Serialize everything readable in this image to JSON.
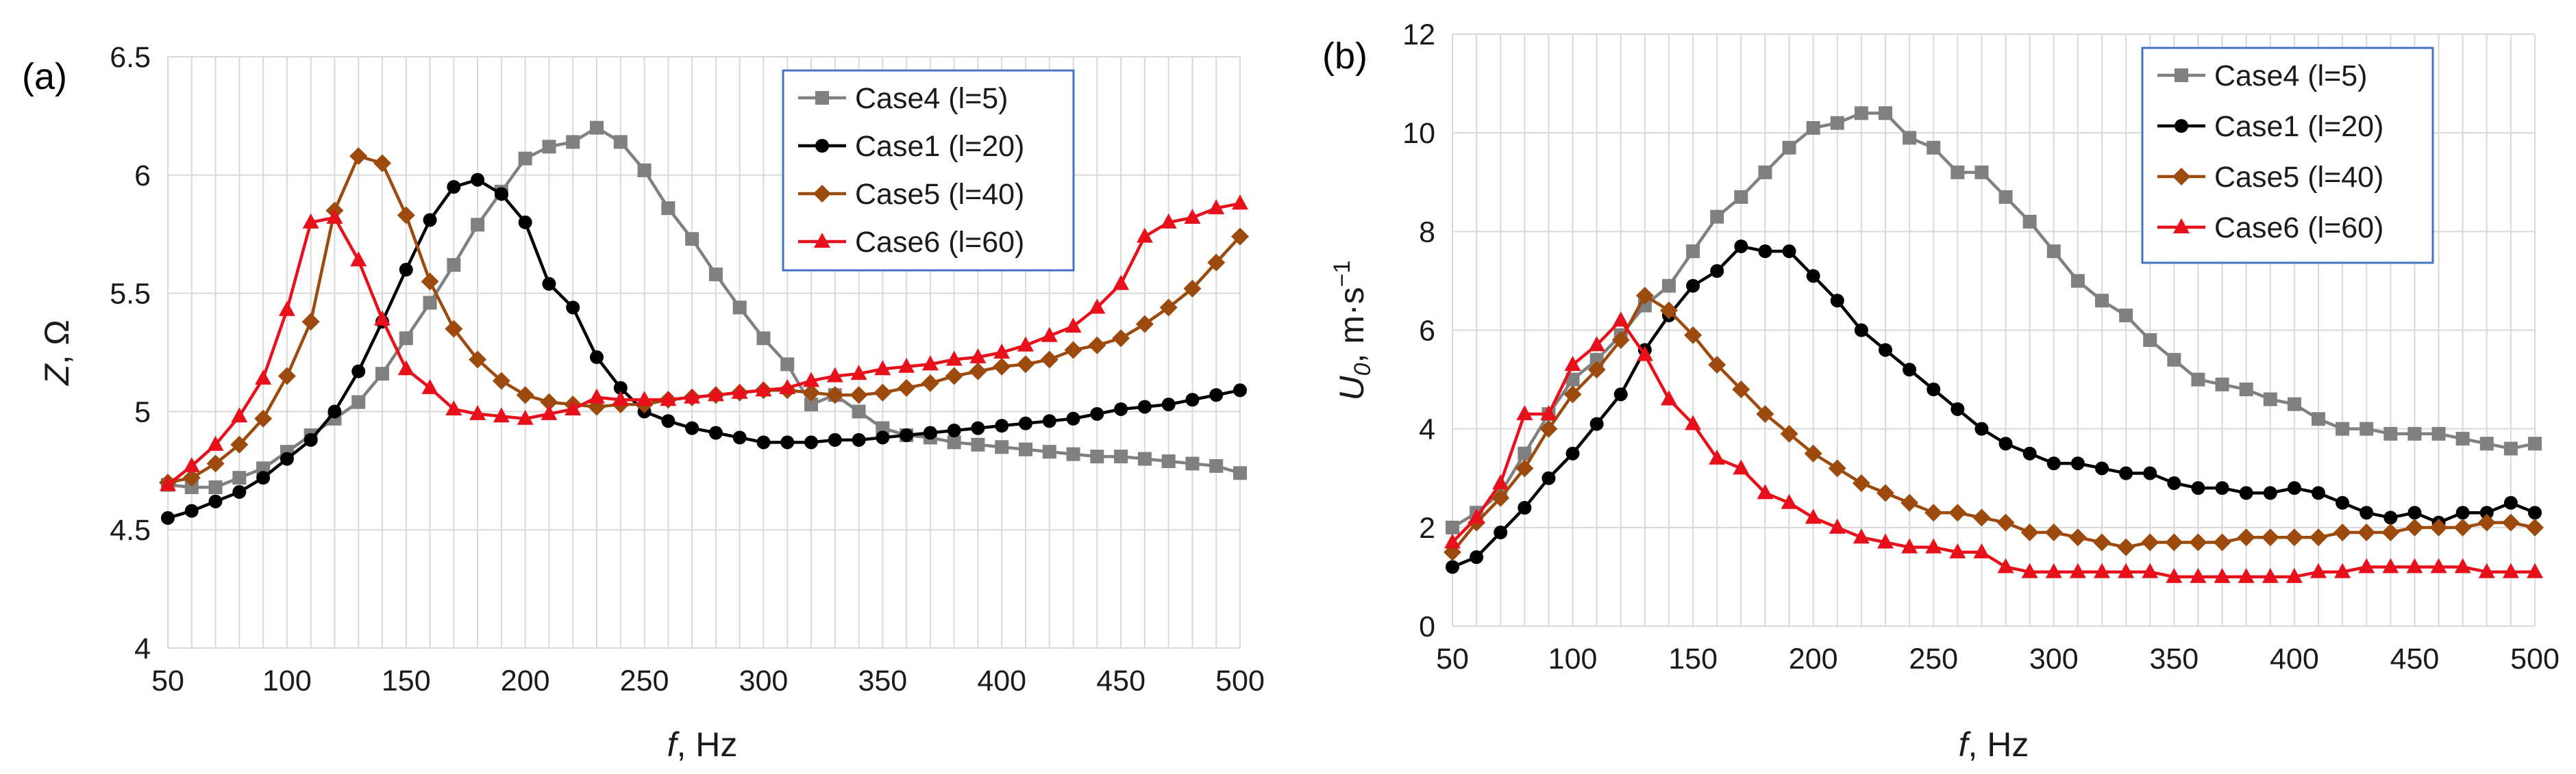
{
  "chart_data": [
    {
      "type": "line",
      "panel_label": "(a)",
      "xlabel": "f",
      "xlabel_unit": ", Hz",
      "ylabel": "Z",
      "ylabel_unit": ", Ω",
      "xlim": [
        50,
        500
      ],
      "ylim": [
        4,
        6.5
      ],
      "xticks": [
        "50",
        "100",
        "150",
        "200",
        "250",
        "300",
        "350",
        "400",
        "450",
        "500"
      ],
      "yticks": [
        "4",
        "4.5",
        "5",
        "5.5",
        "6",
        "6.5"
      ],
      "grid": true,
      "legend_position": "top-right",
      "x": [
        50,
        60,
        70,
        80,
        90,
        100,
        110,
        120,
        130,
        140,
        150,
        160,
        170,
        180,
        190,
        200,
        210,
        220,
        230,
        240,
        250,
        260,
        270,
        280,
        290,
        300,
        310,
        320,
        330,
        340,
        350,
        360,
        370,
        380,
        390,
        400,
        410,
        420,
        430,
        440,
        450,
        460,
        470,
        480,
        490,
        500
      ],
      "series": [
        {
          "name": "Case4 (l=5)",
          "color": "#808080",
          "marker": "square",
          "values": [
            4.69,
            4.68,
            4.68,
            4.72,
            4.76,
            4.83,
            4.9,
            4.97,
            5.04,
            5.16,
            5.31,
            5.46,
            5.62,
            5.79,
            5.93,
            6.07,
            6.12,
            6.14,
            6.2,
            6.14,
            6.02,
            5.86,
            5.73,
            5.58,
            5.44,
            5.31,
            5.2,
            5.03,
            5.07,
            5.0,
            4.93,
            4.9,
            4.89,
            4.87,
            4.86,
            4.85,
            4.84,
            4.83,
            4.82,
            4.81,
            4.81,
            4.8,
            4.79,
            4.78,
            4.77,
            4.74
          ]
        },
        {
          "name": "Case1 (l=20)",
          "color": "#000000",
          "marker": "circle",
          "values": [
            4.55,
            4.58,
            4.62,
            4.66,
            4.72,
            4.8,
            4.88,
            5.0,
            5.17,
            5.38,
            5.6,
            5.81,
            5.95,
            5.98,
            5.92,
            5.8,
            5.54,
            5.44,
            5.23,
            5.1,
            5.0,
            4.96,
            4.93,
            4.91,
            4.89,
            4.87,
            4.87,
            4.87,
            4.88,
            4.88,
            4.89,
            4.9,
            4.91,
            4.92,
            4.93,
            4.94,
            4.95,
            4.96,
            4.97,
            4.99,
            5.01,
            5.02,
            5.03,
            5.05,
            5.07,
            5.09
          ]
        },
        {
          "name": "Case5 (l=40)",
          "color": "#9C4A0E",
          "marker": "diamond",
          "values": [
            4.7,
            4.72,
            4.78,
            4.86,
            4.97,
            5.15,
            5.38,
            5.85,
            6.08,
            6.05,
            5.83,
            5.55,
            5.35,
            5.22,
            5.13,
            5.07,
            5.04,
            5.03,
            5.02,
            5.03,
            5.03,
            5.05,
            5.06,
            5.07,
            5.08,
            5.09,
            5.09,
            5.08,
            5.07,
            5.07,
            5.08,
            5.1,
            5.12,
            5.15,
            5.17,
            5.19,
            5.2,
            5.22,
            5.26,
            5.28,
            5.31,
            5.37,
            5.44,
            5.52,
            5.63,
            5.74
          ]
        },
        {
          "name": "Case6 (l=60)",
          "color": "#E8101A",
          "marker": "triangle",
          "values": [
            4.69,
            4.77,
            4.86,
            4.98,
            5.14,
            5.43,
            5.8,
            5.82,
            5.64,
            5.39,
            5.18,
            5.1,
            5.01,
            4.99,
            4.98,
            4.97,
            4.99,
            5.01,
            5.06,
            5.05,
            5.05,
            5.05,
            5.06,
            5.07,
            5.08,
            5.09,
            5.1,
            5.13,
            5.15,
            5.16,
            5.18,
            5.19,
            5.2,
            5.22,
            5.23,
            5.25,
            5.28,
            5.32,
            5.36,
            5.44,
            5.54,
            5.74,
            5.8,
            5.82,
            5.86,
            5.88
          ]
        }
      ]
    },
    {
      "type": "line",
      "panel_label": "(b)",
      "xlabel": "f",
      "xlabel_unit": ", Hz",
      "ylabel": "U",
      "ylabel_sub": "0",
      "ylabel_unit": ", m·s",
      "ylabel_sup": "−1",
      "xlim": [
        50,
        500
      ],
      "ylim": [
        0,
        12
      ],
      "xticks": [
        "50",
        "100",
        "150",
        "200",
        "250",
        "300",
        "350",
        "400",
        "450",
        "500"
      ],
      "yticks": [
        "0",
        "2",
        "4",
        "6",
        "8",
        "10",
        "12"
      ],
      "grid": true,
      "legend_position": "top-right",
      "x": [
        50,
        60,
        70,
        80,
        90,
        100,
        110,
        120,
        130,
        140,
        150,
        160,
        170,
        180,
        190,
        200,
        210,
        220,
        230,
        240,
        250,
        260,
        270,
        280,
        290,
        300,
        310,
        320,
        330,
        340,
        350,
        360,
        370,
        380,
        390,
        400,
        410,
        420,
        430,
        440,
        450,
        460,
        470,
        480,
        490,
        500
      ],
      "series": [
        {
          "name": "Case4 (l=5)",
          "color": "#808080",
          "marker": "square",
          "values": [
            2.0,
            2.3,
            2.7,
            3.5,
            4.3,
            5.0,
            5.4,
            5.9,
            6.5,
            6.9,
            7.6,
            8.3,
            8.7,
            9.2,
            9.7,
            10.1,
            10.2,
            10.4,
            10.4,
            9.9,
            9.7,
            9.2,
            9.2,
            8.7,
            8.2,
            7.6,
            7.0,
            6.6,
            6.3,
            5.8,
            5.4,
            5.0,
            4.9,
            4.8,
            4.6,
            4.5,
            4.2,
            4.0,
            4.0,
            3.9,
            3.9,
            3.9,
            3.8,
            3.7,
            3.6,
            3.7
          ]
        },
        {
          "name": "Case1 (l=20)",
          "color": "#000000",
          "marker": "circle",
          "values": [
            1.2,
            1.4,
            1.9,
            2.4,
            3.0,
            3.5,
            4.1,
            4.7,
            5.6,
            6.3,
            6.9,
            7.2,
            7.7,
            7.6,
            7.6,
            7.1,
            6.6,
            6.0,
            5.6,
            5.2,
            4.8,
            4.4,
            4.0,
            3.7,
            3.5,
            3.3,
            3.3,
            3.2,
            3.1,
            3.1,
            2.9,
            2.8,
            2.8,
            2.7,
            2.7,
            2.8,
            2.7,
            2.5,
            2.3,
            2.2,
            2.3,
            2.1,
            2.3,
            2.3,
            2.5,
            2.3
          ]
        },
        {
          "name": "Case5 (l=40)",
          "color": "#9C4A0E",
          "marker": "diamond",
          "values": [
            1.5,
            2.1,
            2.6,
            3.2,
            4.0,
            4.7,
            5.2,
            5.8,
            6.7,
            6.4,
            5.9,
            5.3,
            4.8,
            4.3,
            3.9,
            3.5,
            3.2,
            2.9,
            2.7,
            2.5,
            2.3,
            2.3,
            2.2,
            2.1,
            1.9,
            1.9,
            1.8,
            1.7,
            1.6,
            1.7,
            1.7,
            1.7,
            1.7,
            1.8,
            1.8,
            1.8,
            1.8,
            1.9,
            1.9,
            1.9,
            2.0,
            2.0,
            2.0,
            2.1,
            2.1,
            2.0
          ]
        },
        {
          "name": "Case6 (l=60)",
          "color": "#E8101A",
          "marker": "triangle",
          "values": [
            1.7,
            2.2,
            2.9,
            4.3,
            4.3,
            5.3,
            5.7,
            6.2,
            5.5,
            4.6,
            4.1,
            3.4,
            3.2,
            2.7,
            2.5,
            2.2,
            2.0,
            1.8,
            1.7,
            1.6,
            1.6,
            1.5,
            1.5,
            1.2,
            1.1,
            1.1,
            1.1,
            1.1,
            1.1,
            1.1,
            1.0,
            1.0,
            1.0,
            1.0,
            1.0,
            1.0,
            1.1,
            1.1,
            1.2,
            1.2,
            1.2,
            1.2,
            1.2,
            1.1,
            1.1,
            1.1
          ]
        }
      ]
    }
  ]
}
